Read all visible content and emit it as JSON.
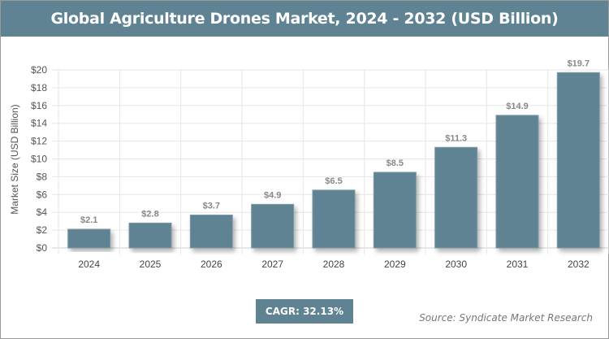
{
  "title": "Global Agriculture Drones Market, 2024 - 2032 (USD Billion)",
  "cagr": "CAGR: 32.13%",
  "source": "Source: Syndicate Market Research",
  "colors": {
    "bar": "#5f8393",
    "header": "#5f8393",
    "grid": "#e6e6e6"
  },
  "chart_data": {
    "type": "bar",
    "categories": [
      "2024",
      "2025",
      "2026",
      "2027",
      "2028",
      "2029",
      "2030",
      "2031",
      "2032"
    ],
    "values": [
      2.1,
      2.8,
      3.7,
      4.9,
      6.5,
      8.5,
      11.3,
      14.9,
      19.7
    ],
    "data_labels": [
      "$2.1",
      "$2.8",
      "$3.7",
      "$4.9",
      "$6.5",
      "$8.5",
      "$11.3",
      "$14.9",
      "$19.7"
    ],
    "ylabel": "Market Size (USD Billion)",
    "xlabel": "",
    "ylim": [
      0,
      20
    ],
    "yticks": [
      "$0",
      "$2",
      "$4",
      "$6",
      "$8",
      "$10",
      "$12",
      "$14",
      "$16",
      "$18",
      "$20"
    ],
    "grid": true
  }
}
